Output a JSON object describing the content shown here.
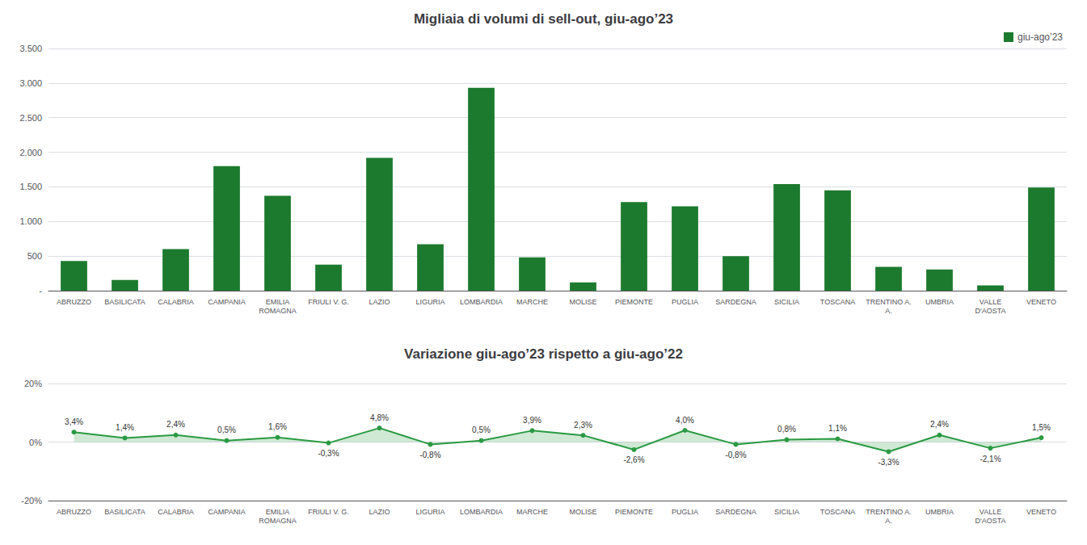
{
  "chart_data": [
    {
      "type": "bar",
      "title": "Migliaia di volumi di sell-out, giu-ago’23",
      "categories": [
        "ABRUZZO",
        "BASILICATA",
        "CALABRIA",
        "CAMPANIA",
        "EMILIA\nROMAGNA",
        "FRIULI V. G.",
        "LAZIO",
        "LIGURIA",
        "LOMBARDIA",
        "MARCHE",
        "MOLISE",
        "PIEMONTE",
        "PUGLIA",
        "SARDEGNA",
        "SICILIA",
        "TOSCANA",
        "TRENTINO A.\nA.",
        "UMBRIA",
        "VALLE\nD'AOSTA",
        "VENETO"
      ],
      "series": [
        {
          "name": "giu-ago’23",
          "color": "#1c7a2e",
          "values": [
            430,
            155,
            600,
            1800,
            1370,
            375,
            1920,
            670,
            2930,
            480,
            120,
            1280,
            1220,
            500,
            1540,
            1450,
            345,
            305,
            75,
            1490
          ]
        }
      ],
      "ylim": [
        0,
        3500
      ],
      "yticks": [
        {
          "value": 0,
          "label": "-"
        },
        500,
        {
          "value": 1000,
          "label": "1.000"
        },
        {
          "value": 1500,
          "label": "1.500"
        },
        {
          "value": 2000,
          "label": "2.000"
        },
        {
          "value": 2500,
          "label": "2.500"
        },
        {
          "value": 3000,
          "label": "3.000"
        },
        {
          "value": 3500,
          "label": "3.500"
        }
      ],
      "grid": true,
      "legend": "upper right"
    },
    {
      "type": "area",
      "title": "Variazione giu-ago’23 rispetto a giu-ago’22",
      "categories": [
        "ABRUZZO",
        "BASILICATA",
        "CALABRIA",
        "CAMPANIA",
        "EMILIA\nROMAGNA",
        "FRIULI V. G.",
        "LAZIO",
        "LIGURIA",
        "LOMBARDIA",
        "MARCHE",
        "MOLISE",
        "PIEMONTE",
        "PUGLIA",
        "SARDEGNA",
        "SICILIA",
        "TOSCANA",
        "TRENTINO A.\nA.",
        "UMBRIA",
        "VALLE\nD'AOSTA",
        "VENETO"
      ],
      "values": [
        3.4,
        1.4,
        2.4,
        0.5,
        1.6,
        -0.3,
        4.8,
        -0.8,
        0.5,
        3.9,
        2.3,
        -2.6,
        4.0,
        -0.8,
        0.8,
        1.1,
        -3.3,
        2.4,
        -2.1,
        1.5
      ],
      "value_labels": [
        "3,4%",
        "1,4%",
        "2,4%",
        "0,5%",
        "1,6%",
        "-0,3%",
        "4,8%",
        "-0,8%",
        "0,5%",
        "3,9%",
        "2,3%",
        "-2,6%",
        "4,0%",
        "-0,8%",
        "0,8%",
        "1,1%",
        "-3,3%",
        "2,4%",
        "-2,1%",
        "1,5%"
      ],
      "color": "#2a9a42",
      "data_labels": true,
      "marker": "circle",
      "ylim": [
        -20,
        20
      ],
      "yticks": [
        {
          "value": -20,
          "label": "-20%"
        },
        {
          "value": 0,
          "label": "0%"
        },
        {
          "value": 20,
          "label": "20%"
        }
      ],
      "grid": true
    }
  ]
}
